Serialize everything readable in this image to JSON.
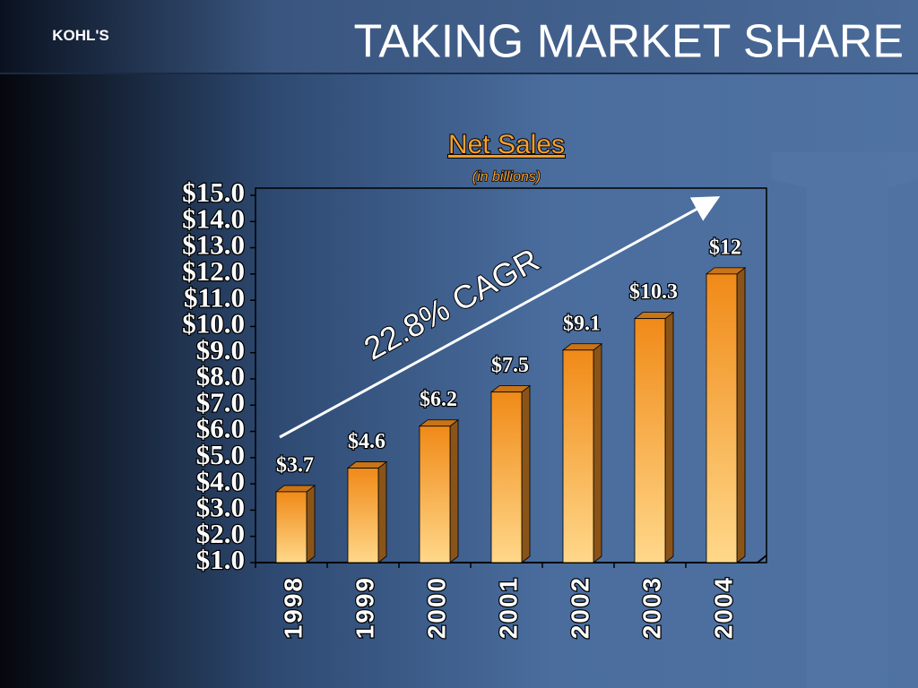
{
  "header": {
    "logo": "KOHL'S",
    "title": "TAKING MARKET SHARE"
  },
  "chart_data": {
    "type": "bar",
    "title": "Net Sales",
    "subtitle": "(in billions)",
    "annotation": "22.8% CAGR",
    "categories": [
      "1998",
      "1999",
      "2000",
      "2001",
      "2002",
      "2003",
      "2004"
    ],
    "values": [
      3.7,
      4.6,
      6.2,
      7.5,
      9.1,
      10.3,
      12
    ],
    "value_labels": [
      "$3.7",
      "$4.6",
      "$6.2",
      "$7.5",
      "$9.1",
      "$10.3",
      "$12"
    ],
    "color": "#f5a030",
    "ylim": [
      1,
      15
    ],
    "yticks": [
      {
        "value": 1,
        "label": "$1.0"
      },
      {
        "value": 2,
        "label": "$2.0"
      },
      {
        "value": 3,
        "label": "$3.0"
      },
      {
        "value": 4,
        "label": "$4.0"
      },
      {
        "value": 5,
        "label": "$5.0"
      },
      {
        "value": 6,
        "label": "$6.0"
      },
      {
        "value": 7,
        "label": "$7.0"
      },
      {
        "value": 8,
        "label": "$8.0"
      },
      {
        "value": 9,
        "label": "$9.0"
      },
      {
        "value": 10,
        "label": "$10.0"
      },
      {
        "value": 11,
        "label": "$11.0"
      },
      {
        "value": 12,
        "label": "$12.0"
      },
      {
        "value": 13,
        "label": "$13.0"
      },
      {
        "value": 14,
        "label": "$14.0"
      },
      {
        "value": 15,
        "label": "$15.0"
      }
    ],
    "grid": false
  }
}
